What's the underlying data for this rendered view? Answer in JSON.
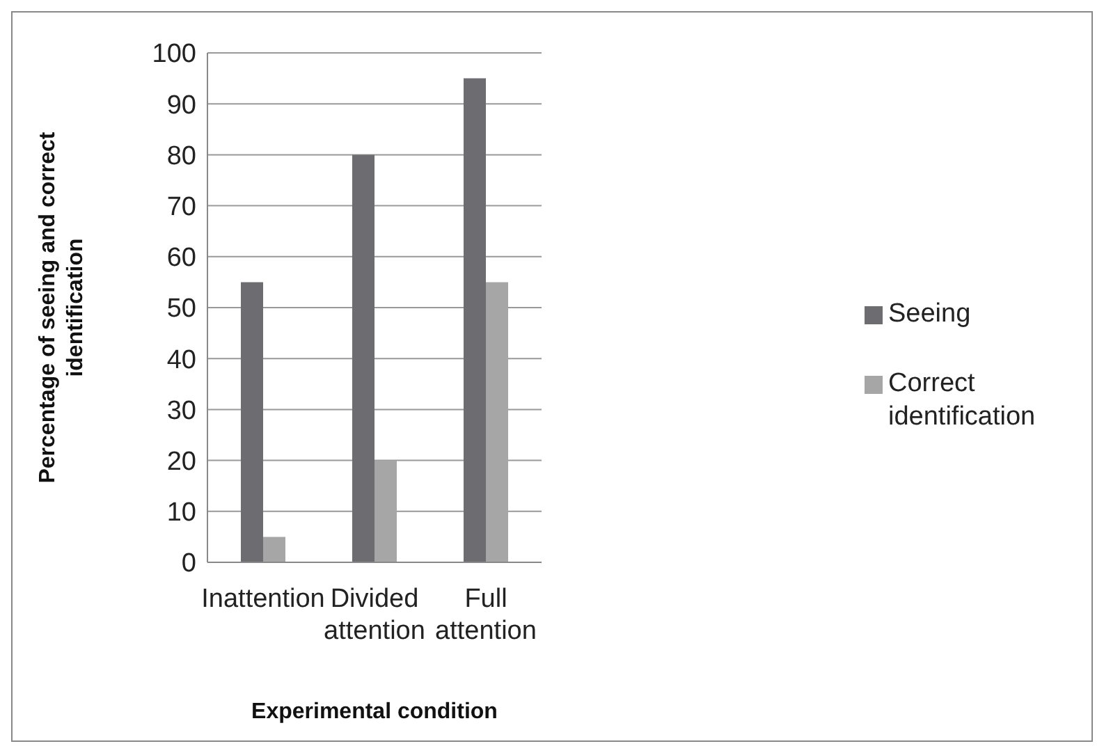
{
  "chart_data": {
    "type": "bar",
    "xlabel": "Experimental condition",
    "ylabel": "Percentage of seeing and correct identification",
    "categories": [
      "Inattention",
      "Divided attention",
      "Full attention"
    ],
    "series": [
      {
        "name": "Seeing",
        "color": "#6d6d71",
        "values": [
          55,
          80,
          95
        ]
      },
      {
        "name": "Correct identification",
        "color": "#a6a6a6",
        "values": [
          5,
          20,
          55
        ]
      }
    ],
    "ylim": [
      0,
      100
    ],
    "yticks": [
      0,
      10,
      20,
      30,
      40,
      50,
      60,
      70,
      80,
      90,
      100
    ],
    "grid": "y",
    "legend": "right"
  }
}
